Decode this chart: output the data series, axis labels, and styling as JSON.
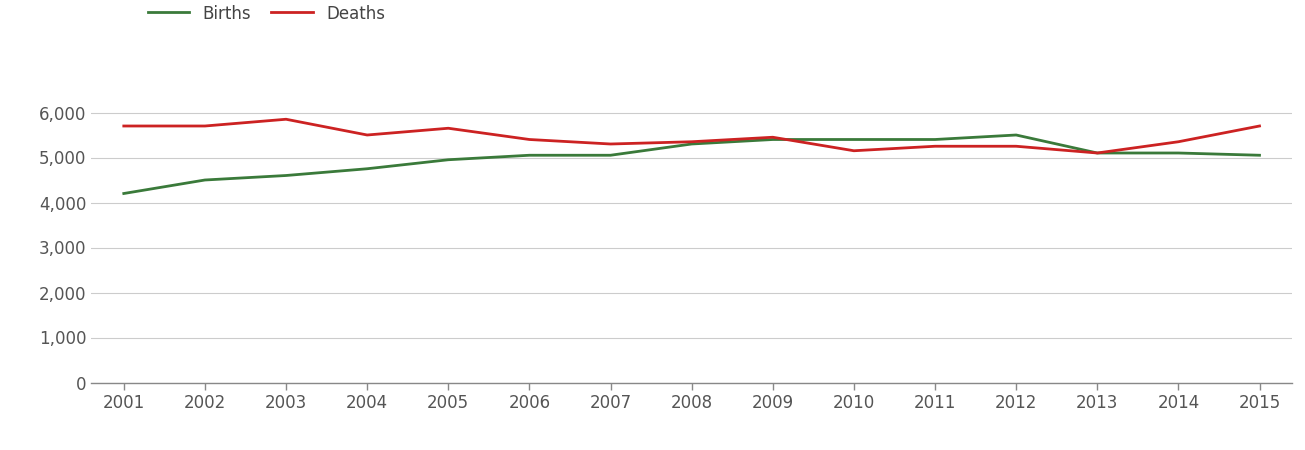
{
  "years": [
    2001,
    2002,
    2003,
    2004,
    2005,
    2006,
    2007,
    2008,
    2009,
    2010,
    2011,
    2012,
    2013,
    2014,
    2015
  ],
  "births": [
    4200,
    4500,
    4600,
    4750,
    4950,
    5050,
    5050,
    5300,
    5400,
    5400,
    5400,
    5500,
    5100,
    5100,
    5050
  ],
  "deaths": [
    5700,
    5700,
    5850,
    5500,
    5650,
    5400,
    5300,
    5350,
    5450,
    5150,
    5250,
    5250,
    5100,
    5350,
    5700
  ],
  "births_color": "#3a7a3a",
  "deaths_color": "#cc2222",
  "background_color": "#ffffff",
  "grid_color": "#cccccc",
  "ylim": [
    0,
    6700
  ],
  "yticks": [
    0,
    1000,
    2000,
    3000,
    4000,
    5000,
    6000
  ],
  "ytick_labels": [
    "0",
    "1,000",
    "2,000",
    "3,000",
    "4,000",
    "5,000",
    "6,000"
  ],
  "legend_births": "Births",
  "legend_deaths": "Deaths",
  "line_width": 2.0,
  "tick_fontsize": 12,
  "legend_fontsize": 12
}
